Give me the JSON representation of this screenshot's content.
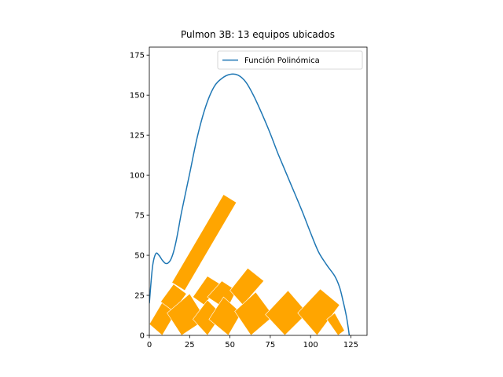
{
  "chart_data": {
    "type": "line",
    "title": "Pulmon 3B: 13 equipos ubicados",
    "xlabel": "",
    "ylabel": "",
    "xlim": [
      0,
      135
    ],
    "ylim": [
      0,
      180
    ],
    "x_ticks": [
      0,
      25,
      50,
      75,
      100,
      125
    ],
    "y_ticks": [
      0,
      25,
      50,
      75,
      100,
      125,
      150,
      175
    ],
    "grid": false,
    "legend": {
      "placement": "top-right",
      "entries": [
        "Función Polinómica"
      ]
    },
    "series": [
      {
        "name": "Función Polinómica",
        "color": "#1f77b4",
        "points": [
          [
            0,
            20
          ],
          [
            2,
            43
          ],
          [
            4,
            51
          ],
          [
            6,
            50
          ],
          [
            8,
            47
          ],
          [
            10,
            45
          ],
          [
            12,
            45.5
          ],
          [
            14,
            49
          ],
          [
            16,
            56
          ],
          [
            18,
            66
          ],
          [
            20,
            77
          ],
          [
            25,
            101
          ],
          [
            30,
            125
          ],
          [
            35,
            143
          ],
          [
            40,
            155
          ],
          [
            45,
            160.5
          ],
          [
            50,
            163
          ],
          [
            55,
            162.5
          ],
          [
            60,
            158
          ],
          [
            65,
            149
          ],
          [
            70,
            138
          ],
          [
            75,
            126
          ],
          [
            80,
            113
          ],
          [
            85,
            101
          ],
          [
            90,
            89
          ],
          [
            95,
            77
          ],
          [
            100,
            64
          ],
          [
            105,
            52
          ],
          [
            110,
            44
          ],
          [
            115,
            37
          ],
          [
            118,
            30
          ],
          [
            120,
            22
          ],
          [
            122,
            13
          ],
          [
            123,
            7
          ],
          [
            124,
            0
          ]
        ]
      }
    ],
    "equipment": {
      "count": 13,
      "color": "#ffa500",
      "rectangles": [
        [
          [
            46,
            88
          ],
          [
            54,
            83
          ],
          [
            22,
            28
          ],
          [
            14,
            33
          ]
        ],
        [
          [
            0,
            7
          ],
          [
            8,
            0
          ],
          [
            18,
            17
          ],
          [
            10,
            24
          ]
        ],
        [
          [
            7,
            21
          ],
          [
            15,
            15
          ],
          [
            23,
            26
          ],
          [
            15,
            32
          ]
        ],
        [
          [
            11,
            14
          ],
          [
            20,
            0
          ],
          [
            35,
            10
          ],
          [
            25,
            26
          ]
        ],
        [
          [
            27,
            24
          ],
          [
            34,
            19
          ],
          [
            44,
            32
          ],
          [
            36,
            37
          ]
        ],
        [
          [
            27,
            10
          ],
          [
            36,
            0
          ],
          [
            45,
            13
          ],
          [
            36,
            22
          ]
        ],
        [
          [
            36,
            24
          ],
          [
            48,
            16
          ],
          [
            54,
            28
          ],
          [
            45,
            34
          ]
        ],
        [
          [
            37,
            10
          ],
          [
            49,
            0
          ],
          [
            57,
            14
          ],
          [
            46,
            24
          ]
        ],
        [
          [
            50,
            28
          ],
          [
            58,
            19
          ],
          [
            71,
            34
          ],
          [
            61,
            42
          ]
        ],
        [
          [
            53,
            15
          ],
          [
            63,
            0
          ],
          [
            77,
            12
          ],
          [
            66,
            27
          ]
        ],
        [
          [
            72,
            13
          ],
          [
            84,
            0
          ],
          [
            98,
            14
          ],
          [
            86,
            28
          ]
        ],
        [
          [
            92,
            14
          ],
          [
            104,
            0
          ],
          [
            118,
            19
          ],
          [
            106,
            29
          ]
        ],
        [
          [
            110,
            10
          ],
          [
            117,
            0
          ],
          [
            121,
            3
          ],
          [
            115,
            14
          ]
        ]
      ]
    }
  }
}
